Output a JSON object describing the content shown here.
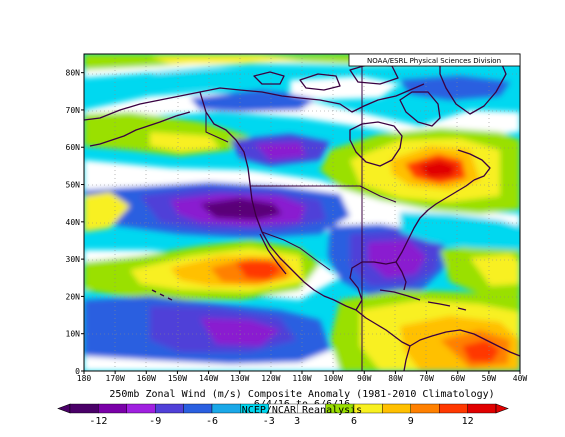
{
  "credit": "NOAA/ESRL Physical Sciences Division",
  "caption": {
    "line1": "250mb Zonal Wind (m/s) Composite Anomaly (1981-2010 Climatology)",
    "line2": "6/4/16 to 6/6/16",
    "line3": "NCEP/NCAR Reanalysis"
  },
  "lat_ticks": [
    "0",
    "10N",
    "20N",
    "30N",
    "40N",
    "50N",
    "60N",
    "70N",
    "80N"
  ],
  "lon_ticks": [
    "180",
    "170W",
    "160W",
    "150W",
    "140W",
    "130W",
    "120W",
    "110W",
    "100W",
    "90W",
    "80W",
    "70W",
    "60W",
    "50W",
    "40W"
  ],
  "colorbar": {
    "tick_labels": [
      "-12",
      "-9",
      "-6",
      "-3",
      "3",
      "6",
      "9",
      "12"
    ],
    "colors": [
      "#4a0068",
      "#7a00a8",
      "#a020e0",
      "#5040d8",
      "#2a5fe0",
      "#1aa8e8",
      "#00d8f0",
      "#ffffff",
      "#ffffff",
      "#9ae000",
      "#f8f020",
      "#ffc000",
      "#ff8000",
      "#ff3800",
      "#e00000"
    ]
  },
  "map": {
    "extent": {
      "lon_min": -180,
      "lon_max": -40,
      "lat_min": 0,
      "lat_max": 85
    },
    "field": "250mb zonal wind composite anomaly",
    "units": "m/s",
    "colors": {
      "strong_negative": "#5a0078",
      "negative": "#8a1ad0",
      "weak_negative": "#2a5fe0",
      "slight_negative": "#00d8f0",
      "neutral": "#ffffff",
      "slight_positive": "#9ae000",
      "positive": "#f8f020",
      "strong_positive": "#ff8000",
      "very_strong_positive": "#e03000"
    }
  }
}
